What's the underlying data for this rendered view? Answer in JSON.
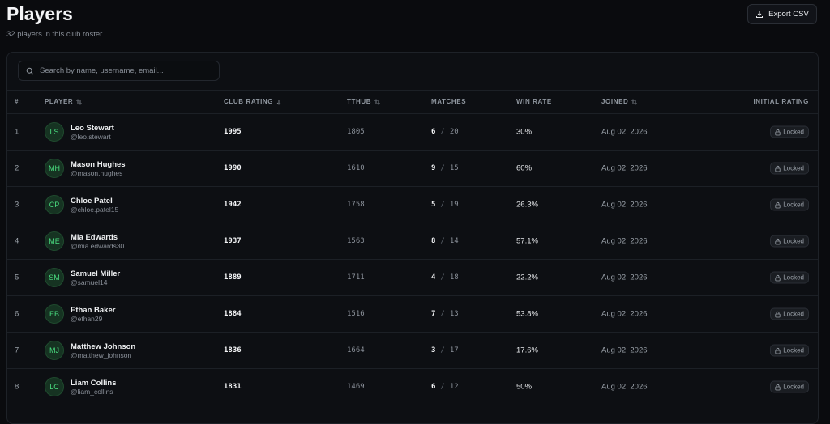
{
  "header": {
    "title": "Players",
    "subtitle": "32 players in this club roster",
    "export_button": "Export CSV"
  },
  "search": {
    "placeholder": "Search by name, username, email..."
  },
  "table": {
    "columns": [
      "#",
      "PLAYER",
      "CLUB RATING",
      "TTHUB",
      "MATCHES",
      "WIN RATE",
      "JOINED",
      "INITIAL RATING"
    ],
    "match_separator": "/",
    "rows": [
      {
        "rank": "1",
        "initials": "LS",
        "name": "Leo Stewart",
        "username": "@leo.stewart",
        "club_rating": "1995",
        "tthub": "1805",
        "wins": "6",
        "matches": "20",
        "win_rate": "30%",
        "joined": "Aug 02, 2026",
        "initial_rating": "Locked"
      },
      {
        "rank": "2",
        "initials": "MH",
        "name": "Mason Hughes",
        "username": "@mason.hughes",
        "club_rating": "1990",
        "tthub": "1610",
        "wins": "9",
        "matches": "15",
        "win_rate": "60%",
        "joined": "Aug 02, 2026",
        "initial_rating": "Locked"
      },
      {
        "rank": "3",
        "initials": "CP",
        "name": "Chloe Patel",
        "username": "@chloe.patel15",
        "club_rating": "1942",
        "tthub": "1758",
        "wins": "5",
        "matches": "19",
        "win_rate": "26.3%",
        "joined": "Aug 02, 2026",
        "initial_rating": "Locked"
      },
      {
        "rank": "4",
        "initials": "ME",
        "name": "Mia Edwards",
        "username": "@mia.edwards30",
        "club_rating": "1937",
        "tthub": "1563",
        "wins": "8",
        "matches": "14",
        "win_rate": "57.1%",
        "joined": "Aug 02, 2026",
        "initial_rating": "Locked"
      },
      {
        "rank": "5",
        "initials": "SM",
        "name": "Samuel Miller",
        "username": "@samuel14",
        "club_rating": "1889",
        "tthub": "1711",
        "wins": "4",
        "matches": "18",
        "win_rate": "22.2%",
        "joined": "Aug 02, 2026",
        "initial_rating": "Locked"
      },
      {
        "rank": "6",
        "initials": "EB",
        "name": "Ethan Baker",
        "username": "@ethan29",
        "club_rating": "1884",
        "tthub": "1516",
        "wins": "7",
        "matches": "13",
        "win_rate": "53.8%",
        "joined": "Aug 02, 2026",
        "initial_rating": "Locked"
      },
      {
        "rank": "7",
        "initials": "MJ",
        "name": "Matthew Johnson",
        "username": "@matthew_johnson",
        "club_rating": "1836",
        "tthub": "1664",
        "wins": "3",
        "matches": "17",
        "win_rate": "17.6%",
        "joined": "Aug 02, 2026",
        "initial_rating": "Locked"
      },
      {
        "rank": "8",
        "initials": "LC",
        "name": "Liam Collins",
        "username": "@liam_collins",
        "club_rating": "1831",
        "tthub": "1469",
        "wins": "6",
        "matches": "12",
        "win_rate": "50%",
        "joined": "Aug 02, 2026",
        "initial_rating": "Locked"
      }
    ]
  }
}
